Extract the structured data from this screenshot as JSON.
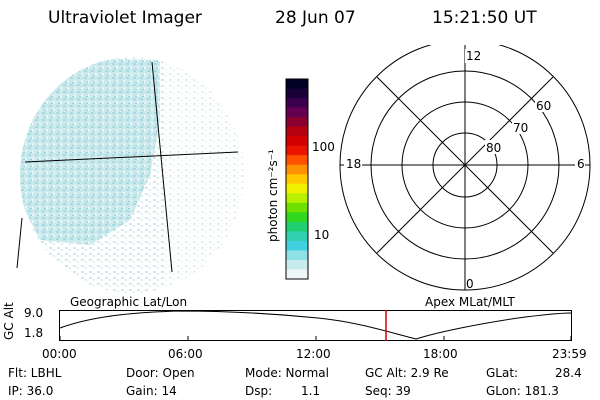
{
  "header": {
    "instrument": "Ultraviolet Imager",
    "date": "28 Jun 07",
    "time": "15:21:50 UT"
  },
  "colorbar": {
    "unit": "photon cm⁻²s⁻¹",
    "ticks": [
      "100",
      "10"
    ],
    "colors": [
      "#000022",
      "#1a0038",
      "#3a004e",
      "#640050",
      "#8c0030",
      "#b40010",
      "#d20000",
      "#ea1400",
      "#ff5000",
      "#ff9000",
      "#ffc800",
      "#f0f000",
      "#b8f000",
      "#70e000",
      "#30d820",
      "#20d070",
      "#30d0b0",
      "#40d0e0",
      "#90e0e8",
      "#c8ecee",
      "#eef6f6"
    ]
  },
  "polar": {
    "mlt_labels": [
      "12",
      "18",
      "6",
      "0"
    ],
    "lat_labels": [
      "60",
      "70",
      "80"
    ]
  },
  "panels": {
    "left_title": "Geographic Lat/Lon",
    "right_title": "Apex MLat/MLT"
  },
  "timeline": {
    "ylabel": "GC Alt",
    "yticks": [
      "9.0",
      "1.8"
    ],
    "xticks": [
      "00:00",
      "06:00",
      "12:00",
      "18:00",
      "23:59"
    ],
    "marker_time": "15:21:50"
  },
  "status": {
    "filter": "Flt: LBHL",
    "ip": "IP: 36.0",
    "door": "Door: Open",
    "gain": "Gain: 14",
    "mode": "Mode: Normal",
    "dsp_label": "Dsp:",
    "dsp_value": "1.1",
    "gc_alt": "GC Alt: 2.9 Re",
    "seq": "Seq: 39",
    "glat": "GLat:",
    "glat_value": "28.4",
    "glon": "GLon: 181.3"
  }
}
